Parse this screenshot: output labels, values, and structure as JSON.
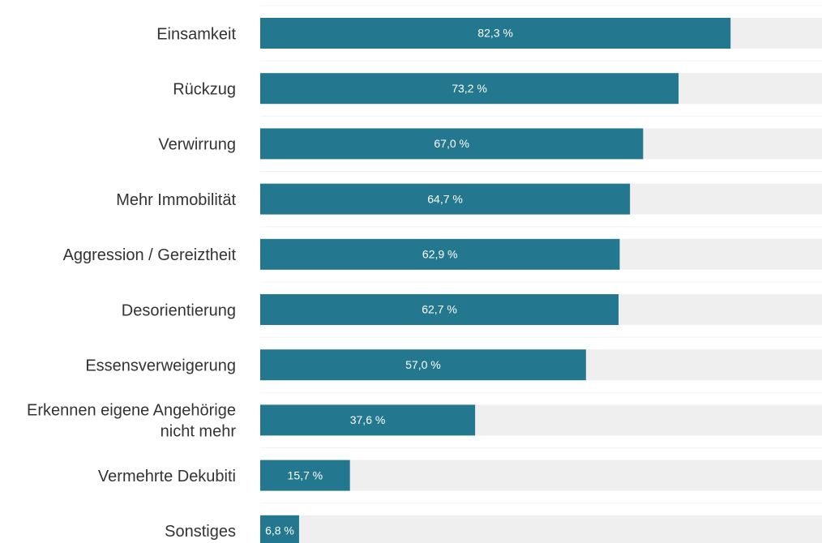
{
  "chart_data": {
    "type": "bar",
    "orientation": "horizontal",
    "categories": [
      "Einsamkeit",
      "Rückzug",
      "Verwirrung",
      "Mehr Immobilität",
      "Aggression / Gereiztheit",
      "Desorientierung",
      "Essensverweigerung",
      "Erkennen eigene Angehörige\nnicht mehr",
      "Vermehrte Dekubiti",
      "Sonstiges"
    ],
    "values": [
      82.3,
      73.2,
      67.0,
      64.7,
      62.9,
      62.7,
      57.0,
      37.6,
      15.7,
      6.8
    ],
    "value_labels": [
      "82,3 %",
      "73,2 %",
      "67,0 %",
      "64,7 %",
      "62,9 %",
      "62,7 %",
      "57,0  %",
      "37,6 %",
      "15,7 %",
      "6,8 %"
    ],
    "color": "#23788f",
    "track_color": "#efefef",
    "xlim": [
      0,
      100
    ]
  }
}
